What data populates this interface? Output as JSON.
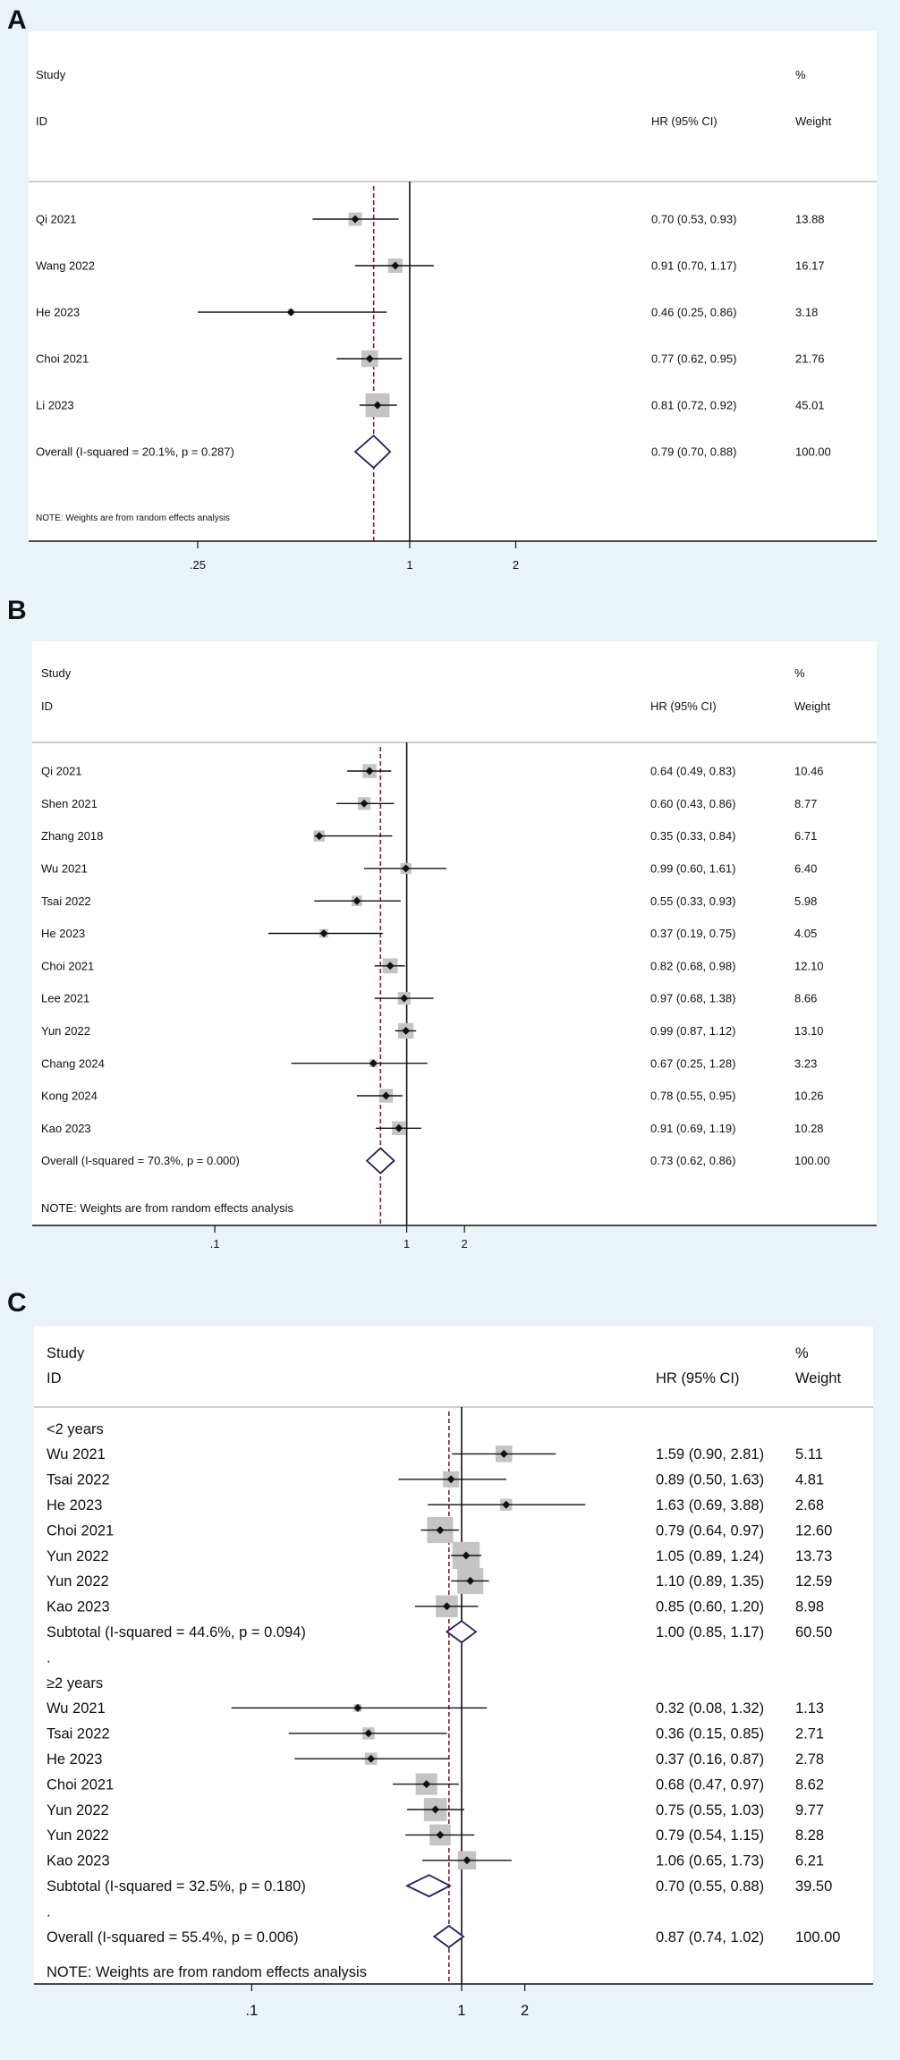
{
  "colors": {
    "background": "#eaf3f8",
    "plot_bg": "#ffffff",
    "box": "#c4c4c4",
    "diamond": "#1f1f5c",
    "overall_line": "#8b1a2b",
    "axis": "#111111"
  },
  "chart_data": [
    {
      "type": "forest",
      "panel_label": "A",
      "header": {
        "study": "Study",
        "id": "ID",
        "hr": "HR (95% CI)",
        "pct": "%",
        "weight": "Weight"
      },
      "ticks": [
        {
          "value": 0.25,
          "label": ".25"
        },
        {
          "value": 1,
          "label": "1"
        },
        {
          "value": 2,
          "label": "2"
        }
      ],
      "null_value": 1,
      "rows": [
        {
          "kind": "study",
          "label": "Qi 2021",
          "hr": 0.7,
          "lo": 0.53,
          "hi": 0.93,
          "ci_text": "0.70 (0.53, 0.93)",
          "weight": 13.88,
          "weight_text": "13.88"
        },
        {
          "kind": "study",
          "label": "Wang 2022",
          "hr": 0.91,
          "lo": 0.7,
          "hi": 1.17,
          "ci_text": "0.91 (0.70, 1.17)",
          "weight": 16.17,
          "weight_text": "16.17"
        },
        {
          "kind": "study",
          "label": "He 2023",
          "hr": 0.46,
          "lo": 0.25,
          "hi": 0.86,
          "ci_text": "0.46 (0.25, 0.86)",
          "weight": 3.18,
          "weight_text": "3.18"
        },
        {
          "kind": "study",
          "label": "Choi 2021",
          "hr": 0.77,
          "lo": 0.62,
          "hi": 0.95,
          "ci_text": "0.77 (0.62, 0.95)",
          "weight": 21.76,
          "weight_text": "21.76"
        },
        {
          "kind": "study",
          "label": "Li 2023",
          "hr": 0.81,
          "lo": 0.72,
          "hi": 0.92,
          "ci_text": "0.81 (0.72, 0.92)",
          "weight": 45.01,
          "weight_text": "45.01"
        },
        {
          "kind": "overall",
          "label": "Overall  (I-squared = 20.1%, p = 0.287)",
          "hr": 0.79,
          "lo": 0.7,
          "hi": 0.88,
          "ci_text": "0.79 (0.70, 0.88)",
          "weight_text": "100.00"
        }
      ],
      "note": "NOTE: Weights are from random effects analysis"
    },
    {
      "type": "forest",
      "panel_label": "B",
      "header": {
        "study": "Study",
        "id": "ID",
        "hr": "HR (95% CI)",
        "pct": "%",
        "weight": "Weight"
      },
      "ticks": [
        {
          "value": 0.1,
          "label": ".1"
        },
        {
          "value": 1,
          "label": "1"
        },
        {
          "value": 2,
          "label": "2"
        }
      ],
      "null_value": 1,
      "rows": [
        {
          "kind": "study",
          "label": "Qi 2021",
          "hr": 0.64,
          "lo": 0.49,
          "hi": 0.83,
          "ci_text": "0.64 (0.49, 0.83)",
          "weight": 10.46,
          "weight_text": "10.46"
        },
        {
          "kind": "study",
          "label": "Shen 2021",
          "hr": 0.6,
          "lo": 0.43,
          "hi": 0.86,
          "ci_text": "0.60 (0.43, 0.86)",
          "weight": 8.77,
          "weight_text": "8.77"
        },
        {
          "kind": "study",
          "label": "Zhang 2018",
          "hr": 0.35,
          "lo": 0.33,
          "hi": 0.84,
          "ci_text": "0.35 (0.33, 0.84)",
          "weight": 6.71,
          "weight_text": "6.71"
        },
        {
          "kind": "study",
          "label": "Wu 2021",
          "hr": 0.99,
          "lo": 0.6,
          "hi": 1.61,
          "ci_text": "0.99 (0.60, 1.61)",
          "weight": 6.4,
          "weight_text": "6.40"
        },
        {
          "kind": "study",
          "label": "Tsai 2022",
          "hr": 0.55,
          "lo": 0.33,
          "hi": 0.93,
          "ci_text": "0.55 (0.33, 0.93)",
          "weight": 5.98,
          "weight_text": "5.98"
        },
        {
          "kind": "study",
          "label": "He 2023",
          "hr": 0.37,
          "lo": 0.19,
          "hi": 0.75,
          "ci_text": "0.37 (0.19, 0.75)",
          "weight": 4.05,
          "weight_text": "4.05"
        },
        {
          "kind": "study",
          "label": "Choi 2021",
          "hr": 0.82,
          "lo": 0.68,
          "hi": 0.98,
          "ci_text": "0.82 (0.68, 0.98)",
          "weight": 12.1,
          "weight_text": "12.10"
        },
        {
          "kind": "study",
          "label": "Lee 2021",
          "hr": 0.97,
          "lo": 0.68,
          "hi": 1.38,
          "ci_text": "0.97 (0.68, 1.38)",
          "weight": 8.66,
          "weight_text": "8.66"
        },
        {
          "kind": "study",
          "label": "Yun 2022",
          "hr": 0.99,
          "lo": 0.87,
          "hi": 1.12,
          "ci_text": "0.99 (0.87, 1.12)",
          "weight": 13.1,
          "weight_text": "13.10"
        },
        {
          "kind": "study",
          "label": "Chang 2024",
          "hr": 0.67,
          "lo": 0.25,
          "hi": 1.28,
          "ci_text": "0.67 (0.25, 1.28)",
          "weight": 3.23,
          "weight_text": "3.23"
        },
        {
          "kind": "study",
          "label": "Kong 2024",
          "hr": 0.78,
          "lo": 0.55,
          "hi": 0.95,
          "ci_text": "0.78 (0.55, 0.95)",
          "weight": 10.26,
          "weight_text": "10.26"
        },
        {
          "kind": "study",
          "label": "Kao 2023",
          "hr": 0.91,
          "lo": 0.69,
          "hi": 1.19,
          "ci_text": "0.91 (0.69, 1.19)",
          "weight": 10.28,
          "weight_text": "10.28"
        },
        {
          "kind": "overall",
          "label": "Overall  (I-squared = 70.3%, p = 0.000)",
          "hr": 0.73,
          "lo": 0.62,
          "hi": 0.86,
          "ci_text": "0.73 (0.62, 0.86)",
          "weight_text": "100.00"
        }
      ],
      "note": "NOTE: Weights are from random effects analysis"
    },
    {
      "type": "forest",
      "panel_label": "C",
      "header": {
        "study": "Study",
        "id": "ID",
        "hr": "HR (95% CI)",
        "pct": "%",
        "weight": "Weight"
      },
      "ticks": [
        {
          "value": 0.1,
          "label": ".1"
        },
        {
          "value": 1,
          "label": "1"
        },
        {
          "value": 2,
          "label": "2"
        }
      ],
      "null_value": 1,
      "rows": [
        {
          "kind": "group",
          "label": "<2 years"
        },
        {
          "kind": "study",
          "label": "Wu 2021",
          "hr": 1.59,
          "lo": 0.9,
          "hi": 2.81,
          "ci_text": "1.59 (0.90, 2.81)",
          "weight": 5.11,
          "weight_text": "5.11"
        },
        {
          "kind": "study",
          "label": "Tsai 2022",
          "hr": 0.89,
          "lo": 0.5,
          "hi": 1.63,
          "ci_text": "0.89 (0.50, 1.63)",
          "weight": 4.81,
          "weight_text": "4.81"
        },
        {
          "kind": "study",
          "label": "He 2023",
          "hr": 1.63,
          "lo": 0.69,
          "hi": 3.88,
          "ci_text": "1.63 (0.69, 3.88)",
          "weight": 2.68,
          "weight_text": "2.68"
        },
        {
          "kind": "study",
          "label": "Choi 2021",
          "hr": 0.79,
          "lo": 0.64,
          "hi": 0.97,
          "ci_text": "0.79 (0.64, 0.97)",
          "weight": 12.6,
          "weight_text": "12.60"
        },
        {
          "kind": "study",
          "label": "Yun 2022",
          "hr": 1.05,
          "lo": 0.89,
          "hi": 1.24,
          "ci_text": "1.05 (0.89, 1.24)",
          "weight": 13.73,
          "weight_text": "13.73"
        },
        {
          "kind": "study",
          "label": "Yun 2022",
          "hr": 1.1,
          "lo": 0.89,
          "hi": 1.35,
          "ci_text": "1.10 (0.89, 1.35)",
          "weight": 12.59,
          "weight_text": "12.59"
        },
        {
          "kind": "study",
          "label": "Kao 2023",
          "hr": 0.85,
          "lo": 0.6,
          "hi": 1.2,
          "ci_text": "0.85 (0.60, 1.20)",
          "weight": 8.98,
          "weight_text": "8.98"
        },
        {
          "kind": "subtotal",
          "label": "Subtotal  (I-squared = 44.6%, p = 0.094)",
          "hr": 1.0,
          "lo": 0.85,
          "hi": 1.17,
          "ci_text": "1.00 (0.85, 1.17)",
          "weight_text": "60.50"
        },
        {
          "kind": "dot",
          "label": "."
        },
        {
          "kind": "group",
          "label": "≥2 years"
        },
        {
          "kind": "study",
          "label": "Wu 2021",
          "hr": 0.32,
          "lo": 0.08,
          "hi": 1.32,
          "ci_text": "0.32 (0.08, 1.32)",
          "weight": 1.13,
          "weight_text": "1.13"
        },
        {
          "kind": "study",
          "label": "Tsai 2022",
          "hr": 0.36,
          "lo": 0.15,
          "hi": 0.85,
          "ci_text": "0.36 (0.15, 0.85)",
          "weight": 2.71,
          "weight_text": "2.71"
        },
        {
          "kind": "study",
          "label": "He 2023",
          "hr": 0.37,
          "lo": 0.16,
          "hi": 0.87,
          "ci_text": "0.37 (0.16, 0.87)",
          "weight": 2.78,
          "weight_text": "2.78"
        },
        {
          "kind": "study",
          "label": "Choi 2021",
          "hr": 0.68,
          "lo": 0.47,
          "hi": 0.97,
          "ci_text": "0.68 (0.47, 0.97)",
          "weight": 8.62,
          "weight_text": "8.62"
        },
        {
          "kind": "study",
          "label": "Yun 2022",
          "hr": 0.75,
          "lo": 0.55,
          "hi": 1.03,
          "ci_text": "0.75 (0.55, 1.03)",
          "weight": 9.77,
          "weight_text": "9.77"
        },
        {
          "kind": "study",
          "label": "Yun 2022",
          "hr": 0.79,
          "lo": 0.54,
          "hi": 1.15,
          "ci_text": "0.79 (0.54, 1.15)",
          "weight": 8.28,
          "weight_text": "8.28"
        },
        {
          "kind": "study",
          "label": "Kao 2023",
          "hr": 1.06,
          "lo": 0.65,
          "hi": 1.73,
          "ci_text": "1.06 (0.65, 1.73)",
          "weight": 6.21,
          "weight_text": "6.21"
        },
        {
          "kind": "subtotal",
          "label": "Subtotal  (I-squared = 32.5%, p = 0.180)",
          "hr": 0.7,
          "lo": 0.55,
          "hi": 0.88,
          "ci_text": "0.70 (0.55, 0.88)",
          "weight_text": "39.50"
        },
        {
          "kind": "dot",
          "label": "."
        },
        {
          "kind": "overall",
          "label": "Overall  (I-squared = 55.4%, p = 0.006)",
          "hr": 0.87,
          "lo": 0.74,
          "hi": 1.02,
          "ci_text": "0.87 (0.74, 1.02)",
          "weight_text": "100.00"
        }
      ],
      "note": "NOTE: Weights are from random effects analysis"
    }
  ]
}
